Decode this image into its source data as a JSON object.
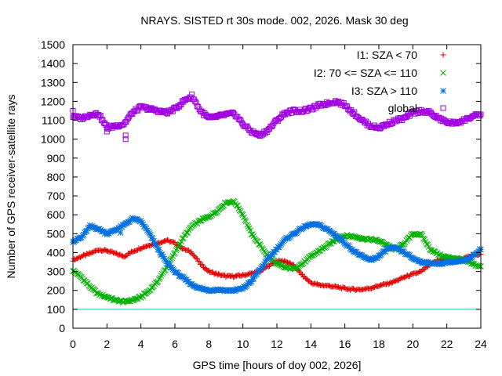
{
  "chart_data": {
    "type": "scatter",
    "title": "NRAYS. SISTED rt 30s mode. 002, 2026. Mask 30 deg",
    "xlabel": "GPS time [hours of doy 002, 2026]",
    "ylabel": "Number of GPS receiver-satellite rays",
    "xlim": [
      0,
      24
    ],
    "ylim": [
      0,
      1500
    ],
    "xticks": [
      0,
      2,
      4,
      6,
      8,
      10,
      12,
      14,
      16,
      18,
      20,
      22,
      24
    ],
    "yticks": [
      0,
      100,
      200,
      300,
      400,
      500,
      600,
      700,
      800,
      900,
      1000,
      1100,
      1200,
      1300,
      1400,
      1500
    ],
    "grid": false,
    "legend_position": "top-right",
    "reference_line": {
      "y": 100,
      "color": "#00c0c0"
    },
    "series": [
      {
        "name": "I1: SZA < 70",
        "marker": "+",
        "color": "#e00000",
        "x": [
          0,
          0.5,
          1,
          1.5,
          2,
          2.5,
          3,
          3.5,
          4,
          4.5,
          5,
          5.5,
          6,
          6.5,
          7,
          7.5,
          8,
          8.5,
          9,
          9.5,
          10,
          10.5,
          11,
          11.5,
          12,
          12.5,
          13,
          13.5,
          14,
          14.5,
          15,
          15.5,
          16,
          16.5,
          17,
          17.5,
          18,
          18.5,
          19,
          19.5,
          20,
          20.5,
          21,
          21.5,
          22,
          22.5,
          23,
          23.5,
          24
        ],
        "y": [
          360,
          380,
          395,
          415,
          410,
          395,
          380,
          405,
          425,
          440,
          450,
          465,
          450,
          420,
          400,
          340,
          300,
          285,
          275,
          275,
          280,
          290,
          300,
          330,
          355,
          355,
          330,
          280,
          240,
          228,
          225,
          218,
          210,
          205,
          205,
          212,
          225,
          235,
          250,
          270,
          285,
          300,
          335,
          360,
          365,
          365,
          368,
          385,
          395
        ]
      },
      {
        "name": "I2: 70 <= SZA <= 110",
        "marker": "x",
        "color": "#00b000",
        "x": [
          0,
          0.5,
          1,
          1.5,
          2,
          2.5,
          3,
          3.5,
          4,
          4.5,
          5,
          5.5,
          6,
          6.5,
          7,
          7.5,
          8,
          8.5,
          9,
          9.5,
          10,
          10.5,
          11,
          11.5,
          12,
          12.5,
          13,
          13.5,
          14,
          14.5,
          15,
          15.5,
          16,
          16.5,
          17,
          17.5,
          18,
          18.5,
          19,
          19.5,
          20,
          20.5,
          21,
          21.5,
          22,
          22.5,
          23,
          23.5,
          24
        ],
        "y": [
          305,
          270,
          220,
          180,
          165,
          148,
          140,
          148,
          165,
          200,
          250,
          320,
          400,
          480,
          540,
          570,
          590,
          620,
          665,
          670,
          600,
          500,
          440,
          380,
          340,
          320,
          315,
          340,
          380,
          410,
          440,
          470,
          490,
          485,
          475,
          470,
          462,
          440,
          415,
          450,
          500,
          495,
          420,
          390,
          375,
          370,
          362,
          340,
          325
        ]
      },
      {
        "name": "I3: SZA > 110",
        "marker": "*",
        "color": "#0070e0",
        "x": [
          0,
          0.5,
          1,
          1.5,
          2,
          2.5,
          3,
          3.5,
          4,
          4.5,
          5,
          5.5,
          6,
          6.5,
          7,
          7.5,
          8,
          8.5,
          9,
          9.5,
          10,
          10.5,
          11,
          11.5,
          12,
          12.5,
          13,
          13.5,
          14,
          14.5,
          15,
          15.5,
          16,
          16.5,
          17,
          17.5,
          18,
          18.5,
          19,
          19.5,
          20,
          20.5,
          21,
          21.5,
          22,
          22.5,
          23,
          23.5,
          24
        ],
        "y": [
          460,
          480,
          540,
          525,
          500,
          520,
          545,
          580,
          565,
          500,
          420,
          350,
          300,
          265,
          230,
          210,
          200,
          205,
          200,
          200,
          210,
          250,
          310,
          370,
          420,
          470,
          500,
          530,
          550,
          545,
          520,
          490,
          450,
          410,
          380,
          360,
          380,
          420,
          425,
          400,
          370,
          350,
          345,
          340,
          350,
          350,
          355,
          380,
          420
        ]
      },
      {
        "name": "global",
        "marker": "square",
        "color": "#a000e0",
        "x": [
          0,
          0.5,
          1,
          1.5,
          2,
          2.5,
          3,
          3.5,
          4,
          4.5,
          5,
          5.5,
          6,
          6.5,
          7,
          7.5,
          8,
          8.5,
          9,
          9.5,
          10,
          10.5,
          11,
          11.5,
          12,
          12.5,
          13,
          13.5,
          14,
          14.5,
          15,
          15.5,
          16,
          16.5,
          17,
          17.5,
          18,
          18.5,
          19,
          19.5,
          20,
          20.5,
          21,
          21.5,
          22,
          22.5,
          23,
          23.5,
          24
        ],
        "y": [
          1120,
          1110,
          1130,
          1135,
          1060,
          1070,
          1080,
          1140,
          1170,
          1160,
          1150,
          1140,
          1160,
          1200,
          1230,
          1150,
          1110,
          1120,
          1130,
          1135,
          1080,
          1040,
          1020,
          1050,
          1100,
          1140,
          1150,
          1150,
          1160,
          1180,
          1190,
          1200,
          1180,
          1140,
          1100,
          1070,
          1060,
          1080,
          1100,
          1110,
          1140,
          1150,
          1140,
          1110,
          1090,
          1085,
          1100,
          1120,
          1130
        ]
      }
    ],
    "outliers": [
      {
        "series": "global",
        "x": [
          0,
          2,
          3.1,
          3.1
        ],
        "y": [
          1150,
          1040,
          1020,
          1000
        ]
      },
      {
        "series": "I3: SZA > 110",
        "x": [
          2.8
        ],
        "y": [
          505
        ]
      }
    ]
  }
}
